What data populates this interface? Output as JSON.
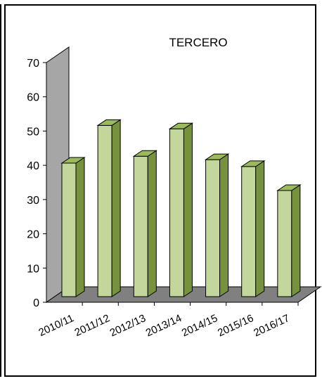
{
  "chart_data": {
    "type": "bar",
    "title": "TERCERO",
    "xlabel": "",
    "ylabel": "",
    "categories": [
      "2010/11",
      "2011/12",
      "2012/13",
      "2013/14",
      "2014/15",
      "2015/16",
      "2016/17"
    ],
    "values": [
      39,
      50,
      41,
      49,
      40,
      38,
      31
    ],
    "ylim": [
      0,
      70
    ],
    "yticks": [
      0,
      10,
      20,
      30,
      40,
      50,
      60,
      70
    ],
    "grid": false,
    "legend": "none",
    "style": "3d-column",
    "colors": {
      "bar_front": "#c3d69b",
      "bar_side": "#76923c",
      "bar_top": "#9bbb59",
      "wall": "#a6a6a6",
      "floor": "#808080"
    }
  }
}
